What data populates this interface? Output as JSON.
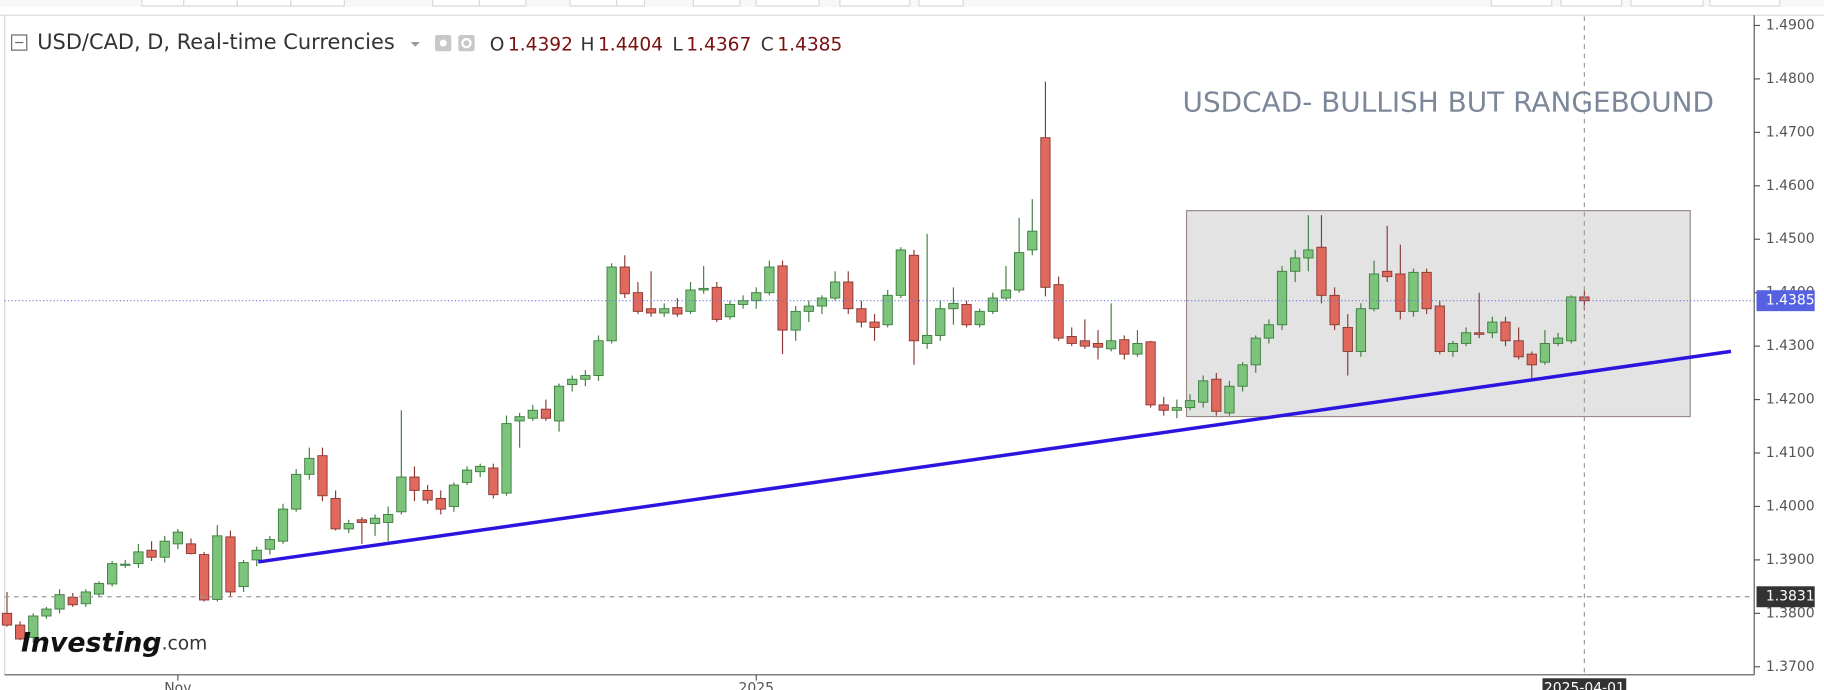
{
  "chart_data": {
    "type": "candlestick",
    "title": "USD/CAD, D, Real-time Currencies",
    "ohlc_labels": [
      "O",
      "H",
      "L",
      "C"
    ],
    "annotation": "USDCAD- BULLISH BUT RANGEBOUND",
    "watermark": {
      "brand": "Investing",
      "suffix": ".com"
    },
    "up_color": "#7cc47c",
    "down_color": "#e0685d",
    "categories": [
      null,
      null,
      null,
      null,
      null,
      null,
      null,
      null,
      null,
      null,
      null,
      null,
      null,
      "Nov",
      null,
      null,
      null,
      null,
      null,
      null,
      null,
      null,
      null,
      null,
      null,
      null,
      null,
      null,
      null,
      null,
      null,
      null,
      null,
      null,
      null,
      null,
      null,
      null,
      null,
      null,
      null,
      null,
      null,
      null,
      null,
      null,
      null,
      null,
      null,
      null,
      null,
      null,
      null,
      null,
      null,
      null,
      null,
      "2025",
      null,
      null,
      null,
      null,
      null,
      null,
      null,
      null,
      null,
      null,
      null,
      null,
      null,
      null,
      null,
      null,
      null,
      null,
      null,
      null,
      null,
      null,
      null,
      null,
      null,
      null,
      null,
      null,
      null,
      null,
      null,
      null,
      null,
      null,
      null,
      null,
      null,
      null,
      null,
      null,
      null,
      null,
      null,
      null,
      null,
      null,
      null,
      null,
      null,
      null,
      null,
      null,
      null,
      null,
      null,
      null,
      null,
      null,
      null,
      null,
      null,
      null,
      "2025-04-01"
    ],
    "open": [
      1.38,
      1.3778,
      1.3755,
      1.3795,
      1.3808,
      1.383,
      1.3818,
      1.3836,
      1.3855,
      1.389,
      1.3893,
      1.3918,
      1.3905,
      1.393,
      1.393,
      1.391,
      1.3826,
      1.3943,
      1.385,
      1.39,
      1.392,
      1.3935,
      1.3995,
      1.406,
      1.4095,
      1.4015,
      1.3958,
      1.3975,
      1.3968,
      1.397,
      1.399,
      1.4055,
      1.403,
      1.4015,
      1.4,
      1.4045,
      1.4065,
      1.4072,
      1.4025,
      1.416,
      1.4165,
      1.4182,
      1.416,
      1.4228,
      1.4238,
      1.4245,
      1.431,
      1.4448,
      1.44,
      1.437,
      1.4362,
      1.4372,
      1.4365,
      1.4405,
      1.441,
      1.4355,
      1.4378,
      1.4385,
      1.44,
      1.445,
      1.433,
      1.4365,
      1.4375,
      1.439,
      1.442,
      1.437,
      1.4345,
      1.434,
      1.4395,
      1.447,
      1.4305,
      1.432,
      1.437,
      1.4378,
      1.434,
      1.4365,
      1.439,
      1.4405,
      1.448,
      1.469,
      1.4415,
      1.4318,
      1.431,
      1.4305,
      1.4295,
      1.4312,
      1.4285,
      1.4308,
      1.419,
      1.418,
      1.4185,
      1.4195,
      1.4238,
      1.4175,
      1.4225,
      1.4265,
      1.4315,
      1.434,
      1.444,
      1.4465,
      1.4485,
      1.4395,
      1.4335,
      1.429,
      1.437,
      1.444,
      1.4435,
      1.4365,
      1.4438,
      1.4375,
      1.429,
      1.4305,
      1.4325,
      1.4325,
      1.4345,
      1.431,
      1.4285,
      1.427,
      1.4305,
      1.431,
      1.4392
    ],
    "high": [
      1.384,
      1.3785,
      1.38,
      1.3812,
      1.3845,
      1.3838,
      1.3845,
      1.386,
      1.3898,
      1.39,
      1.393,
      1.3935,
      1.3945,
      1.3958,
      1.394,
      1.3915,
      1.3965,
      1.3955,
      1.39,
      1.3925,
      1.3945,
      1.4005,
      1.407,
      1.411,
      1.411,
      1.403,
      1.3975,
      1.398,
      1.3985,
      1.4,
      1.418,
      1.4075,
      1.404,
      1.403,
      1.4045,
      1.4075,
      1.408,
      1.408,
      1.417,
      1.4175,
      1.419,
      1.42,
      1.423,
      1.4245,
      1.4255,
      1.432,
      1.4455,
      1.447,
      1.442,
      1.444,
      1.438,
      1.439,
      1.442,
      1.445,
      1.442,
      1.4385,
      1.4395,
      1.441,
      1.446,
      1.446,
      1.4375,
      1.4385,
      1.4395,
      1.444,
      1.444,
      1.4385,
      1.436,
      1.4405,
      1.4485,
      1.448,
      1.451,
      1.4385,
      1.441,
      1.4385,
      1.437,
      1.44,
      1.445,
      1.454,
      1.4575,
      1.4795,
      1.443,
      1.4335,
      1.435,
      1.433,
      1.438,
      1.432,
      1.433,
      1.431,
      1.4205,
      1.42,
      1.421,
      1.4245,
      1.425,
      1.4235,
      1.427,
      1.432,
      1.435,
      1.445,
      1.448,
      1.4545,
      1.4545,
      1.441,
      1.436,
      1.438,
      1.446,
      1.4525,
      1.449,
      1.4445,
      1.4445,
      1.4385,
      1.431,
      1.4335,
      1.44,
      1.4355,
      1.4355,
      1.4335,
      1.429,
      1.433,
      1.4325,
      1.4395,
      1.4404
    ],
    "low": [
      1.3775,
      1.375,
      1.3745,
      1.379,
      1.38,
      1.3812,
      1.3812,
      1.383,
      1.385,
      1.3885,
      1.3885,
      1.3898,
      1.3895,
      1.392,
      1.391,
      1.3822,
      1.3822,
      1.383,
      1.384,
      1.3888,
      1.391,
      1.393,
      1.399,
      1.405,
      1.401,
      1.3955,
      1.395,
      1.393,
      1.3945,
      1.3935,
      1.3985,
      1.401,
      1.4005,
      1.3985,
      1.399,
      1.404,
      1.4055,
      1.4015,
      1.402,
      1.411,
      1.416,
      1.416,
      1.414,
      1.4215,
      1.4225,
      1.4235,
      1.4305,
      1.439,
      1.436,
      1.4355,
      1.4355,
      1.4355,
      1.436,
      1.4398,
      1.4345,
      1.435,
      1.437,
      1.437,
      1.4395,
      1.4285,
      1.431,
      1.4345,
      1.436,
      1.4385,
      1.436,
      1.4335,
      1.431,
      1.4335,
      1.439,
      1.4265,
      1.4295,
      1.431,
      1.434,
      1.4335,
      1.4335,
      1.436,
      1.4385,
      1.44,
      1.447,
      1.4393,
      1.431,
      1.43,
      1.4295,
      1.4275,
      1.429,
      1.4275,
      1.428,
      1.4185,
      1.417,
      1.4165,
      1.418,
      1.4185,
      1.417,
      1.417,
      1.4215,
      1.425,
      1.4305,
      1.433,
      1.442,
      1.444,
      1.438,
      1.433,
      1.4245,
      1.428,
      1.4365,
      1.442,
      1.435,
      1.4355,
      1.436,
      1.4285,
      1.428,
      1.43,
      1.4315,
      1.4315,
      1.43,
      1.4275,
      1.424,
      1.4265,
      1.43,
      1.4305,
      1.4367
    ],
    "close": [
      1.3778,
      1.3752,
      1.3795,
      1.3808,
      1.3835,
      1.3816,
      1.384,
      1.3856,
      1.3893,
      1.3892,
      1.3915,
      1.3905,
      1.3935,
      1.3952,
      1.3912,
      1.3825,
      1.3945,
      1.384,
      1.3895,
      1.3918,
      1.3938,
      1.3995,
      1.406,
      1.409,
      1.402,
      1.3958,
      1.3968,
      1.397,
      1.3978,
      1.3985,
      1.4055,
      1.403,
      1.4012,
      1.3995,
      1.404,
      1.4068,
      1.4075,
      1.4022,
      1.4155,
      1.4168,
      1.418,
      1.4165,
      1.4225,
      1.4238,
      1.4245,
      1.431,
      1.4448,
      1.4398,
      1.4365,
      1.4362,
      1.437,
      1.436,
      1.4405,
      1.4408,
      1.435,
      1.4378,
      1.4385,
      1.44,
      1.4448,
      1.433,
      1.4365,
      1.4375,
      1.439,
      1.442,
      1.437,
      1.4345,
      1.4335,
      1.4395,
      1.448,
      1.431,
      1.432,
      1.437,
      1.438,
      1.434,
      1.4365,
      1.439,
      1.4405,
      1.4475,
      1.4515,
      1.441,
      1.4315,
      1.4305,
      1.43,
      1.4298,
      1.431,
      1.4285,
      1.4305,
      1.419,
      1.418,
      1.4185,
      1.4198,
      1.4235,
      1.4178,
      1.4225,
      1.4265,
      1.4315,
      1.434,
      1.444,
      1.4465,
      1.448,
      1.4395,
      1.434,
      1.429,
      1.437,
      1.4435,
      1.443,
      1.4365,
      1.4438,
      1.437,
      1.429,
      1.4305,
      1.4325,
      1.4322,
      1.4345,
      1.431,
      1.428,
      1.4265,
      1.4305,
      1.4315,
      1.4392,
      1.4385
    ],
    "crosshair_price": 1.3831,
    "ylim": [
      1.3685,
      1.4917
    ],
    "yticks": [
      {
        "value": 1.37,
        "label": "1.3700"
      },
      {
        "value": 1.38,
        "label": "1.3800"
      },
      {
        "value": 1.39,
        "label": "1.3900"
      },
      {
        "value": 1.4,
        "label": "1.4000"
      },
      {
        "value": 1.41,
        "label": "1.4100"
      },
      {
        "value": 1.42,
        "label": "1.4200"
      },
      {
        "value": 1.43,
        "label": "1.4300"
      },
      {
        "value": 1.44,
        "label": "1.4400"
      },
      {
        "value": 1.45,
        "label": "1.4500"
      },
      {
        "value": 1.46,
        "label": "1.4600"
      },
      {
        "value": 1.47,
        "label": "1.4700"
      },
      {
        "value": 1.48,
        "label": "1.4800"
      },
      {
        "value": 1.49,
        "label": "1.4900"
      }
    ]
  }
}
